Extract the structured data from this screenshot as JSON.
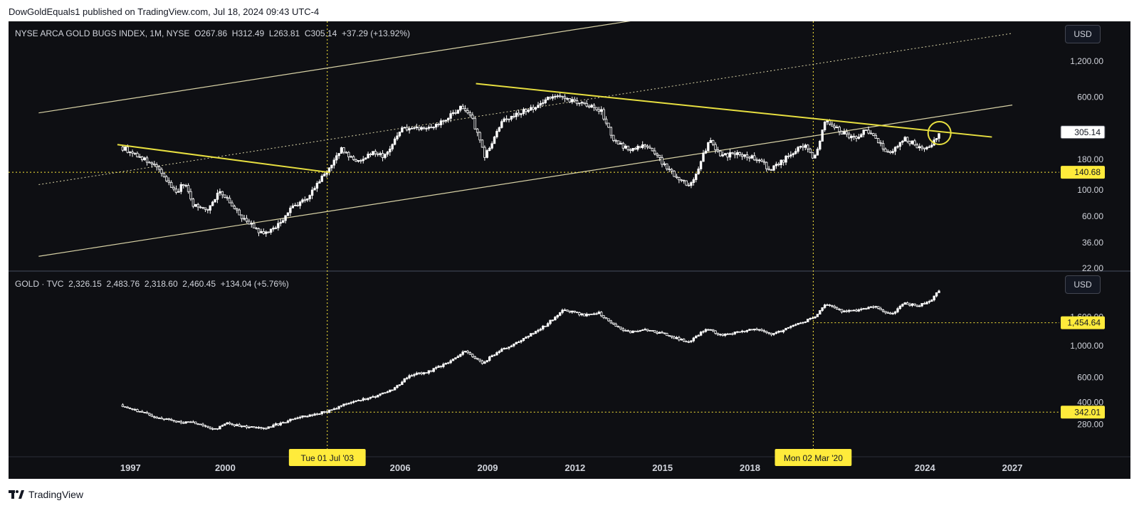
{
  "attribution": "DowGoldEquals1 published on TradingView.com, Jul 18, 2024 09:43 UTC-4",
  "footer": {
    "brand": "TradingView",
    "logo_icon": "tradingview-logo-icon"
  },
  "colors": {
    "background": "#0e0f13",
    "candle": "#ffffff",
    "trendline": "#e7df40",
    "channel": "#d8d2a6",
    "text": "#d1d4dc",
    "label_highlight": "#ffeb3b"
  },
  "currency_button": "USD",
  "x_axis": {
    "ticks": [
      {
        "label": "1997",
        "year": 1996.75
      },
      {
        "label": "2000",
        "year": 2000
      },
      {
        "label": "2006",
        "year": 2006
      },
      {
        "label": "2009",
        "year": 2009
      },
      {
        "label": "2012",
        "year": 2012
      },
      {
        "label": "2015",
        "year": 2015
      },
      {
        "label": "2018",
        "year": 2018
      },
      {
        "label": "2024",
        "year": 2024
      },
      {
        "label": "2027",
        "year": 2027
      }
    ],
    "markers": [
      {
        "label": "Tue 01 Jul '03",
        "year": 2003.5
      },
      {
        "label": "Mon 02 Mar '20",
        "year": 2020.17
      }
    ]
  },
  "chart_data": [
    {
      "type": "candlestick",
      "title": "NYSE ARCA GOLD BUGS INDEX, 1M, NYSE",
      "ohlc_last": {
        "open": "267.86",
        "high": "312.49",
        "low": "263.81",
        "close": "305.14",
        "change": "+37.29",
        "change_pct": "(+13.92%)"
      },
      "scale": "log",
      "ylim": [
        22,
        1500
      ],
      "y_ticks": [
        "1,200.00",
        "600.00",
        "180.00",
        "100.00",
        "60.00",
        "36.00",
        "22.00"
      ],
      "price_labels": [
        {
          "label": "305.14",
          "value": 305.14,
          "style": "current"
        },
        {
          "label": "140.68",
          "value": 140.68,
          "style": "highlight"
        }
      ],
      "closes": [
        {
          "x": 1996.4,
          "y": 230
        },
        {
          "x": 1997.0,
          "y": 195
        },
        {
          "x": 1997.7,
          "y": 150
        },
        {
          "x": 1998.3,
          "y": 95
        },
        {
          "x": 1998.6,
          "y": 115
        },
        {
          "x": 1998.9,
          "y": 75
        },
        {
          "x": 1999.4,
          "y": 68
        },
        {
          "x": 1999.8,
          "y": 100
        },
        {
          "x": 2000.4,
          "y": 65
        },
        {
          "x": 2000.9,
          "y": 50
        },
        {
          "x": 2001.3,
          "y": 42
        },
        {
          "x": 2001.8,
          "y": 50
        },
        {
          "x": 2002.3,
          "y": 72
        },
        {
          "x": 2002.8,
          "y": 85
        },
        {
          "x": 2003.5,
          "y": 145
        },
        {
          "x": 2004.0,
          "y": 220
        },
        {
          "x": 2004.5,
          "y": 170
        },
        {
          "x": 2005.0,
          "y": 205
        },
        {
          "x": 2005.5,
          "y": 190
        },
        {
          "x": 2006.0,
          "y": 320
        },
        {
          "x": 2006.5,
          "y": 340
        },
        {
          "x": 2007.0,
          "y": 330
        },
        {
          "x": 2007.5,
          "y": 380
        },
        {
          "x": 2008.1,
          "y": 500
        },
        {
          "x": 2008.5,
          "y": 380
        },
        {
          "x": 2008.9,
          "y": 190
        },
        {
          "x": 2009.5,
          "y": 370
        },
        {
          "x": 2010.0,
          "y": 440
        },
        {
          "x": 2010.5,
          "y": 480
        },
        {
          "x": 2011.2,
          "y": 610
        },
        {
          "x": 2011.7,
          "y": 580
        },
        {
          "x": 2012.3,
          "y": 520
        },
        {
          "x": 2012.9,
          "y": 460
        },
        {
          "x": 2013.3,
          "y": 260
        },
        {
          "x": 2013.8,
          "y": 220
        },
        {
          "x": 2014.4,
          "y": 240
        },
        {
          "x": 2014.9,
          "y": 180
        },
        {
          "x": 2015.6,
          "y": 120
        },
        {
          "x": 2016.0,
          "y": 110
        },
        {
          "x": 2016.6,
          "y": 260
        },
        {
          "x": 2017.0,
          "y": 195
        },
        {
          "x": 2017.6,
          "y": 200
        },
        {
          "x": 2018.3,
          "y": 180
        },
        {
          "x": 2018.7,
          "y": 145
        },
        {
          "x": 2019.4,
          "y": 200
        },
        {
          "x": 2019.9,
          "y": 240
        },
        {
          "x": 2020.2,
          "y": 180
        },
        {
          "x": 2020.6,
          "y": 390
        },
        {
          "x": 2021.0,
          "y": 320
        },
        {
          "x": 2021.6,
          "y": 270
        },
        {
          "x": 2022.0,
          "y": 320
        },
        {
          "x": 2022.4,
          "y": 250
        },
        {
          "x": 2022.8,
          "y": 200
        },
        {
          "x": 2023.3,
          "y": 270
        },
        {
          "x": 2023.8,
          "y": 230
        },
        {
          "x": 2024.1,
          "y": 220
        },
        {
          "x": 2024.5,
          "y": 305
        }
      ],
      "trendlines": [
        {
          "x1": 1996.3,
          "y1": 240,
          "x2": 2003.6,
          "y2": 140
        },
        {
          "x1": 2008.6,
          "y1": 780,
          "x2": 2026.3,
          "y2": 278
        }
      ],
      "channel": {
        "base_x": 2000,
        "base_y": 48.5,
        "factor_per_year": 1.0915,
        "upper_multiple": 16,
        "mid_multiple": 4,
        "start_x": 1993.6,
        "end_x": 2027.0
      },
      "highlight_circle": {
        "x": 2024.5,
        "y": 300
      },
      "hlines": [
        {
          "value": 140.68
        }
      ]
    },
    {
      "type": "candlestick",
      "title": "GOLD · TVC",
      "ohlc_last": {
        "open": "2,326.15",
        "high": "2,483.76",
        "low": "2,318.60",
        "close": "2,460.45",
        "change": "+134.04",
        "change_pct": "(+5.76%)"
      },
      "scale": "log",
      "ylim": [
        195,
        2700
      ],
      "y_ticks": [
        "1,600.00",
        "1,000.00",
        "600.00",
        "400.00",
        "280.00"
      ],
      "price_labels": [
        {
          "label": "1,454.64",
          "value": 1454.64,
          "style": "highlight"
        },
        {
          "label": "342.01",
          "value": 342.01,
          "style": "highlight"
        }
      ],
      "closes": [
        {
          "x": 1996.4,
          "y": 385
        },
        {
          "x": 1997.0,
          "y": 350
        },
        {
          "x": 1997.7,
          "y": 310
        },
        {
          "x": 1998.5,
          "y": 290
        },
        {
          "x": 1999.0,
          "y": 287
        },
        {
          "x": 1999.6,
          "y": 255
        },
        {
          "x": 2000.0,
          "y": 285
        },
        {
          "x": 2000.7,
          "y": 270
        },
        {
          "x": 2001.3,
          "y": 262
        },
        {
          "x": 2002.0,
          "y": 290
        },
        {
          "x": 2002.6,
          "y": 318
        },
        {
          "x": 2003.5,
          "y": 345
        },
        {
          "x": 2004.2,
          "y": 400
        },
        {
          "x": 2005.0,
          "y": 430
        },
        {
          "x": 2005.8,
          "y": 500
        },
        {
          "x": 2006.3,
          "y": 620
        },
        {
          "x": 2007.0,
          "y": 660
        },
        {
          "x": 2007.8,
          "y": 800
        },
        {
          "x": 2008.2,
          "y": 930
        },
        {
          "x": 2008.8,
          "y": 760
        },
        {
          "x": 2009.5,
          "y": 940
        },
        {
          "x": 2010.3,
          "y": 1150
        },
        {
          "x": 2011.0,
          "y": 1400
        },
        {
          "x": 2011.6,
          "y": 1800
        },
        {
          "x": 2012.3,
          "y": 1650
        },
        {
          "x": 2012.8,
          "y": 1720
        },
        {
          "x": 2013.3,
          "y": 1420
        },
        {
          "x": 2013.8,
          "y": 1250
        },
        {
          "x": 2014.5,
          "y": 1300
        },
        {
          "x": 2015.1,
          "y": 1200
        },
        {
          "x": 2015.9,
          "y": 1060
        },
        {
          "x": 2016.5,
          "y": 1320
        },
        {
          "x": 2017.0,
          "y": 1190
        },
        {
          "x": 2017.8,
          "y": 1280
        },
        {
          "x": 2018.4,
          "y": 1300
        },
        {
          "x": 2018.8,
          "y": 1200
        },
        {
          "x": 2019.5,
          "y": 1400
        },
        {
          "x": 2020.2,
          "y": 1580
        },
        {
          "x": 2020.6,
          "y": 1970
        },
        {
          "x": 2021.2,
          "y": 1730
        },
        {
          "x": 2021.8,
          "y": 1800
        },
        {
          "x": 2022.3,
          "y": 1900
        },
        {
          "x": 2022.8,
          "y": 1650
        },
        {
          "x": 2023.3,
          "y": 1980
        },
        {
          "x": 2023.8,
          "y": 1920
        },
        {
          "x": 2024.2,
          "y": 2100
        },
        {
          "x": 2024.5,
          "y": 2460
        }
      ],
      "hlines": [
        {
          "value": 1454.64,
          "from_x": 2020.17
        },
        {
          "value": 342.01,
          "from_x": 2003.5
        }
      ]
    }
  ]
}
